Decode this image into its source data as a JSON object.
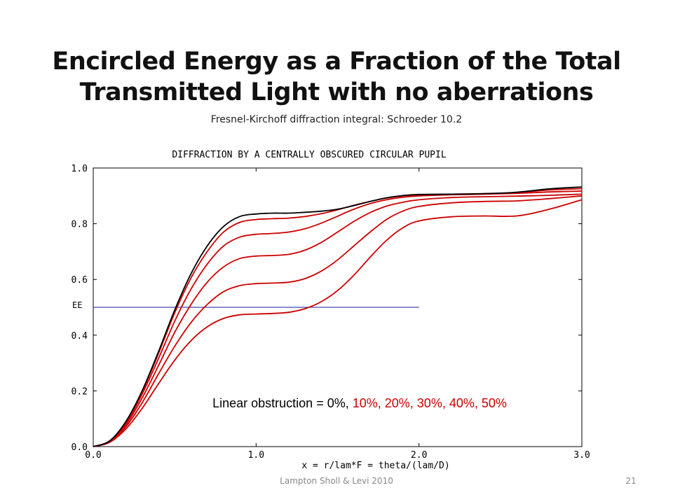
{
  "slide": {
    "title_line1": "Encircled Energy as a Fraction of the Total",
    "title_line2": "Transmitted Light with no aberrations",
    "subtitle": "Fresnel-Kirchoff diffraction integral: Schroeder 10.2",
    "footer": "Lampton Sholl & Levi 2010",
    "page_number": "21"
  },
  "chart_data": {
    "type": "line",
    "title": "DIFFRACTION BY A CENTRALLY OBSCURED CIRCULAR PUPIL",
    "xlabel": "x = r/lam*F = theta/(lam/D)",
    "ylabel": "",
    "xlim": [
      0,
      3
    ],
    "ylim": [
      0,
      1
    ],
    "x_ticks": [
      "0.0",
      "1.0",
      "2.0",
      "3.0"
    ],
    "y_ticks": [
      "0.0",
      "0.2",
      "0.4",
      "0.6",
      "0.8",
      "1.0"
    ],
    "grid": false,
    "annotation": {
      "prefix": "Linear obstruction = 0%, ",
      "red_part": "10%, 20%, 30%, 40%, 50%"
    },
    "reference_line": {
      "label": "EE",
      "y": 0.5,
      "x_from": 0.0,
      "x_to": 2.0
    },
    "colors": {
      "obstruction_0": "#000000",
      "obstructed": "#cc0000",
      "reference": "#1a1a9a"
    },
    "series": [
      {
        "obstruction": "0%",
        "points": [
          [
            0,
            0
          ],
          [
            0.1,
            0.02
          ],
          [
            0.2,
            0.09
          ],
          [
            0.3,
            0.2
          ],
          [
            0.4,
            0.34
          ],
          [
            0.5,
            0.49
          ],
          [
            0.6,
            0.62
          ],
          [
            0.7,
            0.72
          ],
          [
            0.8,
            0.79
          ],
          [
            0.9,
            0.826
          ],
          [
            1.0,
            0.835
          ],
          [
            1.1,
            0.838
          ],
          [
            1.2,
            0.838
          ],
          [
            1.3,
            0.841
          ],
          [
            1.4,
            0.845
          ],
          [
            1.5,
            0.852
          ],
          [
            1.6,
            0.865
          ],
          [
            1.7,
            0.88
          ],
          [
            1.8,
            0.893
          ],
          [
            1.9,
            0.901
          ],
          [
            2.0,
            0.905
          ],
          [
            2.2,
            0.906
          ],
          [
            2.4,
            0.908
          ],
          [
            2.6,
            0.913
          ],
          [
            2.8,
            0.925
          ],
          [
            3.0,
            0.932
          ]
        ]
      },
      {
        "obstruction": "10%",
        "points": [
          [
            0,
            0
          ],
          [
            0.1,
            0.02
          ],
          [
            0.2,
            0.088
          ],
          [
            0.3,
            0.197
          ],
          [
            0.4,
            0.333
          ],
          [
            0.5,
            0.48
          ],
          [
            0.6,
            0.605
          ],
          [
            0.7,
            0.7
          ],
          [
            0.8,
            0.77
          ],
          [
            0.9,
            0.805
          ],
          [
            1.0,
            0.815
          ],
          [
            1.1,
            0.818
          ],
          [
            1.2,
            0.82
          ],
          [
            1.3,
            0.826
          ],
          [
            1.4,
            0.836
          ],
          [
            1.5,
            0.85
          ],
          [
            1.6,
            0.866
          ],
          [
            1.7,
            0.88
          ],
          [
            1.8,
            0.892
          ],
          [
            1.9,
            0.9
          ],
          [
            2.0,
            0.904
          ],
          [
            2.2,
            0.906
          ],
          [
            2.4,
            0.908
          ],
          [
            2.6,
            0.912
          ],
          [
            2.8,
            0.921
          ],
          [
            3.0,
            0.926
          ]
        ]
      },
      {
        "obstruction": "20%",
        "points": [
          [
            0,
            0
          ],
          [
            0.1,
            0.019
          ],
          [
            0.2,
            0.084
          ],
          [
            0.3,
            0.188
          ],
          [
            0.4,
            0.315
          ],
          [
            0.5,
            0.45
          ],
          [
            0.6,
            0.565
          ],
          [
            0.7,
            0.655
          ],
          [
            0.8,
            0.72
          ],
          [
            0.9,
            0.752
          ],
          [
            1.0,
            0.762
          ],
          [
            1.1,
            0.765
          ],
          [
            1.2,
            0.77
          ],
          [
            1.3,
            0.782
          ],
          [
            1.4,
            0.802
          ],
          [
            1.5,
            0.827
          ],
          [
            1.6,
            0.852
          ],
          [
            1.7,
            0.872
          ],
          [
            1.8,
            0.886
          ],
          [
            1.9,
            0.895
          ],
          [
            2.0,
            0.9
          ],
          [
            2.2,
            0.904
          ],
          [
            2.4,
            0.906
          ],
          [
            2.6,
            0.909
          ],
          [
            2.8,
            0.914
          ],
          [
            3.0,
            0.917
          ]
        ]
      },
      {
        "obstruction": "30%",
        "points": [
          [
            0,
            0
          ],
          [
            0.1,
            0.018
          ],
          [
            0.2,
            0.078
          ],
          [
            0.3,
            0.174
          ],
          [
            0.4,
            0.29
          ],
          [
            0.5,
            0.41
          ],
          [
            0.6,
            0.51
          ],
          [
            0.7,
            0.59
          ],
          [
            0.8,
            0.645
          ],
          [
            0.9,
            0.675
          ],
          [
            1.0,
            0.684
          ],
          [
            1.1,
            0.686
          ],
          [
            1.2,
            0.69
          ],
          [
            1.3,
            0.705
          ],
          [
            1.4,
            0.733
          ],
          [
            1.5,
            0.77
          ],
          [
            1.6,
            0.808
          ],
          [
            1.7,
            0.84
          ],
          [
            1.8,
            0.863
          ],
          [
            1.9,
            0.877
          ],
          [
            2.0,
            0.886
          ],
          [
            2.2,
            0.894
          ],
          [
            2.4,
            0.897
          ],
          [
            2.6,
            0.899
          ],
          [
            2.8,
            0.902
          ],
          [
            3.0,
            0.906
          ]
        ]
      },
      {
        "obstruction": "40%",
        "points": [
          [
            0,
            0
          ],
          [
            0.1,
            0.017
          ],
          [
            0.2,
            0.071
          ],
          [
            0.3,
            0.157
          ],
          [
            0.4,
            0.26
          ],
          [
            0.5,
            0.36
          ],
          [
            0.6,
            0.445
          ],
          [
            0.7,
            0.51
          ],
          [
            0.8,
            0.556
          ],
          [
            0.9,
            0.578
          ],
          [
            1.0,
            0.585
          ],
          [
            1.1,
            0.587
          ],
          [
            1.2,
            0.59
          ],
          [
            1.3,
            0.603
          ],
          [
            1.4,
            0.63
          ],
          [
            1.5,
            0.67
          ],
          [
            1.6,
            0.72
          ],
          [
            1.7,
            0.77
          ],
          [
            1.8,
            0.815
          ],
          [
            1.9,
            0.845
          ],
          [
            2.0,
            0.862
          ],
          [
            2.2,
            0.875
          ],
          [
            2.4,
            0.88
          ],
          [
            2.6,
            0.882
          ],
          [
            2.8,
            0.89
          ],
          [
            3.0,
            0.9
          ]
        ]
      },
      {
        "obstruction": "50%",
        "points": [
          [
            0,
            0
          ],
          [
            0.1,
            0.015
          ],
          [
            0.2,
            0.063
          ],
          [
            0.3,
            0.137
          ],
          [
            0.4,
            0.225
          ],
          [
            0.5,
            0.31
          ],
          [
            0.6,
            0.38
          ],
          [
            0.7,
            0.43
          ],
          [
            0.8,
            0.46
          ],
          [
            0.9,
            0.473
          ],
          [
            1.0,
            0.476
          ],
          [
            1.1,
            0.478
          ],
          [
            1.2,
            0.482
          ],
          [
            1.3,
            0.495
          ],
          [
            1.4,
            0.52
          ],
          [
            1.5,
            0.56
          ],
          [
            1.6,
            0.615
          ],
          [
            1.7,
            0.68
          ],
          [
            1.8,
            0.74
          ],
          [
            1.9,
            0.785
          ],
          [
            2.0,
            0.81
          ],
          [
            2.2,
            0.825
          ],
          [
            2.4,
            0.828
          ],
          [
            2.6,
            0.828
          ],
          [
            2.8,
            0.852
          ],
          [
            3.0,
            0.886
          ]
        ]
      }
    ]
  }
}
